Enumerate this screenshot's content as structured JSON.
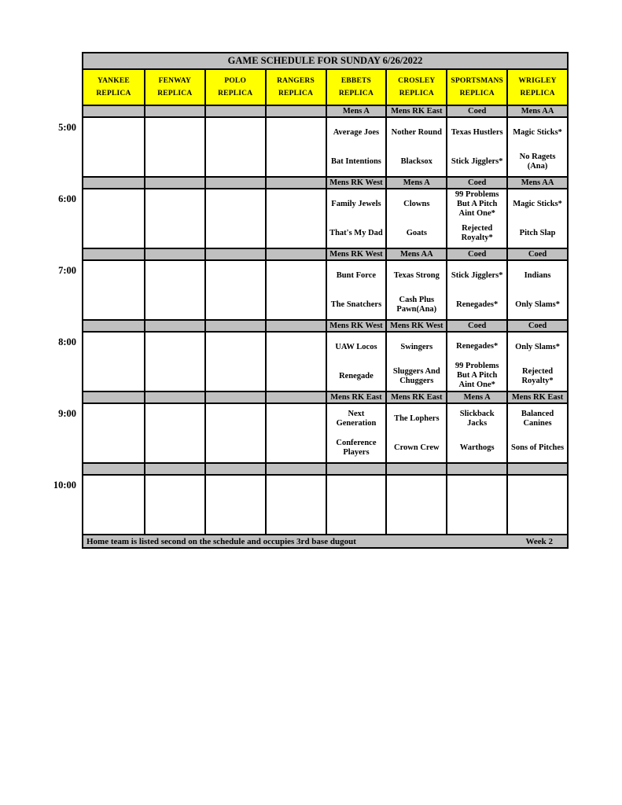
{
  "title": "GAME SCHEDULE FOR SUNDAY 6/26/2022",
  "columns": [
    {
      "name": "YANKEE",
      "sub": "REPLICA"
    },
    {
      "name": "FENWAY",
      "sub": "REPLICA"
    },
    {
      "name": "POLO",
      "sub": "REPLICA"
    },
    {
      "name": "RANGERS",
      "sub": "REPLICA"
    },
    {
      "name": "EBBETS",
      "sub": "REPLICA"
    },
    {
      "name": "CROSLEY",
      "sub": "REPLICA"
    },
    {
      "name": "SPORTSMANS",
      "sub": "REPLICA"
    },
    {
      "name": "WRIGLEY",
      "sub": "REPLICA"
    }
  ],
  "time_slots": [
    {
      "time": "5:00",
      "leagues": [
        "",
        "",
        "",
        "",
        "Mens A",
        "Mens RK East",
        "Coed",
        "Mens AA"
      ],
      "games": [
        null,
        null,
        null,
        null,
        {
          "away": "Average Joes",
          "home": "Bat Intentions"
        },
        {
          "away": "Nother Round",
          "home": "Blacksox"
        },
        {
          "away": "Texas Hustlers",
          "home": "Stick Jigglers*"
        },
        {
          "away": "Magic Sticks*",
          "home": "No Ragets (Ana)"
        }
      ]
    },
    {
      "time": "6:00",
      "leagues": [
        "",
        "",
        "",
        "",
        "Mens RK West",
        "Mens A",
        "Coed",
        "Mens AA"
      ],
      "games": [
        null,
        null,
        null,
        null,
        {
          "away": "Family Jewels",
          "home": "That's My Dad"
        },
        {
          "away": "Clowns",
          "home": "Goats"
        },
        {
          "away": "99 Problems But A Pitch Aint One*",
          "home": "Rejected Royalty*"
        },
        {
          "away": "Magic Sticks*",
          "home": "Pitch Slap"
        }
      ]
    },
    {
      "time": "7:00",
      "leagues": [
        "",
        "",
        "",
        "",
        "Mens RK West",
        "Mens AA",
        "Coed",
        "Coed"
      ],
      "games": [
        null,
        null,
        null,
        null,
        {
          "away": "Bunt Force",
          "home": "The Snatchers"
        },
        {
          "away": "Texas Strong",
          "home": "Cash Plus Pawn(Ana)"
        },
        {
          "away": "Stick Jigglers*",
          "home": "Renegades*"
        },
        {
          "away": "Indians",
          "home": "Only Slams*"
        }
      ]
    },
    {
      "time": "8:00",
      "leagues": [
        "",
        "",
        "",
        "",
        "Mens RK West",
        "Mens RK West",
        "Coed",
        "Coed"
      ],
      "games": [
        null,
        null,
        null,
        null,
        {
          "away": "UAW Locos",
          "home": "Renegade"
        },
        {
          "away": "Swingers",
          "home": "Sluggers And Chuggers"
        },
        {
          "away": "Renegades*",
          "home": "99 Problems But A Pitch Aint One*"
        },
        {
          "away": "Only Slams*",
          "home": "Rejected Royalty*"
        }
      ]
    },
    {
      "time": "9:00",
      "leagues": [
        "",
        "",
        "",
        "",
        "Mens RK East",
        "Mens RK East",
        "Mens A",
        "Mens RK East"
      ],
      "games": [
        null,
        null,
        null,
        null,
        {
          "away": "Next Generation",
          "home": "Conference Players"
        },
        {
          "away": "The Lophers",
          "home": "Crown Crew"
        },
        {
          "away": "Slickback Jacks",
          "home": "Warthogs"
        },
        {
          "away": "Balanced Canines",
          "home": "Sons of Pitches"
        }
      ]
    },
    {
      "time": "10:00",
      "leagues": [
        "",
        "",
        "",
        "",
        "",
        "",
        "",
        ""
      ],
      "games": [
        null,
        null,
        null,
        null,
        null,
        null,
        null,
        null
      ]
    }
  ],
  "footer": {
    "note": "Home team is listed second on the schedule and occupies 3rd base dugout",
    "week": "Week 2"
  },
  "colors": {
    "header_bg": "#ffff00",
    "band_bg": "#c0c0c0",
    "border": "#000000",
    "page_bg": "#ffffff",
    "text": "#000000"
  }
}
